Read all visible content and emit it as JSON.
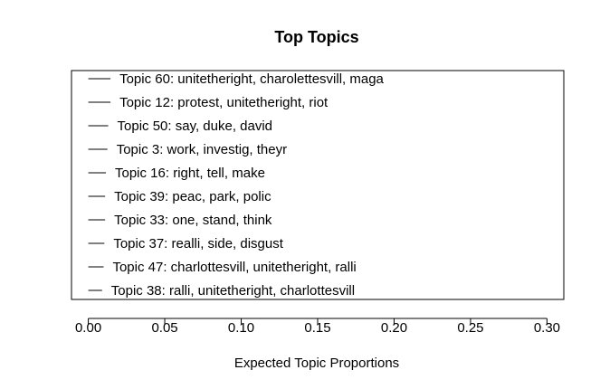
{
  "chart_data": {
    "type": "bar",
    "title": "Top Topics",
    "xlabel": "Expected Topic Proportions",
    "ylabel": "",
    "xlim": [
      -0.011,
      0.311
    ],
    "xticks": [
      0.0,
      0.05,
      0.1,
      0.15,
      0.2,
      0.25,
      0.3
    ],
    "xtick_labels": [
      "0.00",
      "0.05",
      "0.10",
      "0.15",
      "0.20",
      "0.25",
      "0.30"
    ],
    "grid": false,
    "legend": "none",
    "color": "#000000",
    "topics": [
      {
        "label": "Topic 60: unitetheright, charolettesvill, maga",
        "value": 0.0145
      },
      {
        "label": "Topic 12: protest, unitetheright, riot",
        "value": 0.0145
      },
      {
        "label": "Topic 50: say, duke, david",
        "value": 0.013
      },
      {
        "label": "Topic 3: work, investig, theyr",
        "value": 0.0125
      },
      {
        "label": "Topic 16: right, tell, make",
        "value": 0.0115
      },
      {
        "label": "Topic 39: peac, park, polic",
        "value": 0.011
      },
      {
        "label": "Topic 33: one, stand, think",
        "value": 0.011
      },
      {
        "label": "Topic 37: realli, side, disgust",
        "value": 0.0105
      },
      {
        "label": "Topic 47: charlottesvill, unitetheright, ralli",
        "value": 0.01
      },
      {
        "label": "Topic 38: ralli, unitetheright, charlottesvill",
        "value": 0.009
      }
    ]
  }
}
